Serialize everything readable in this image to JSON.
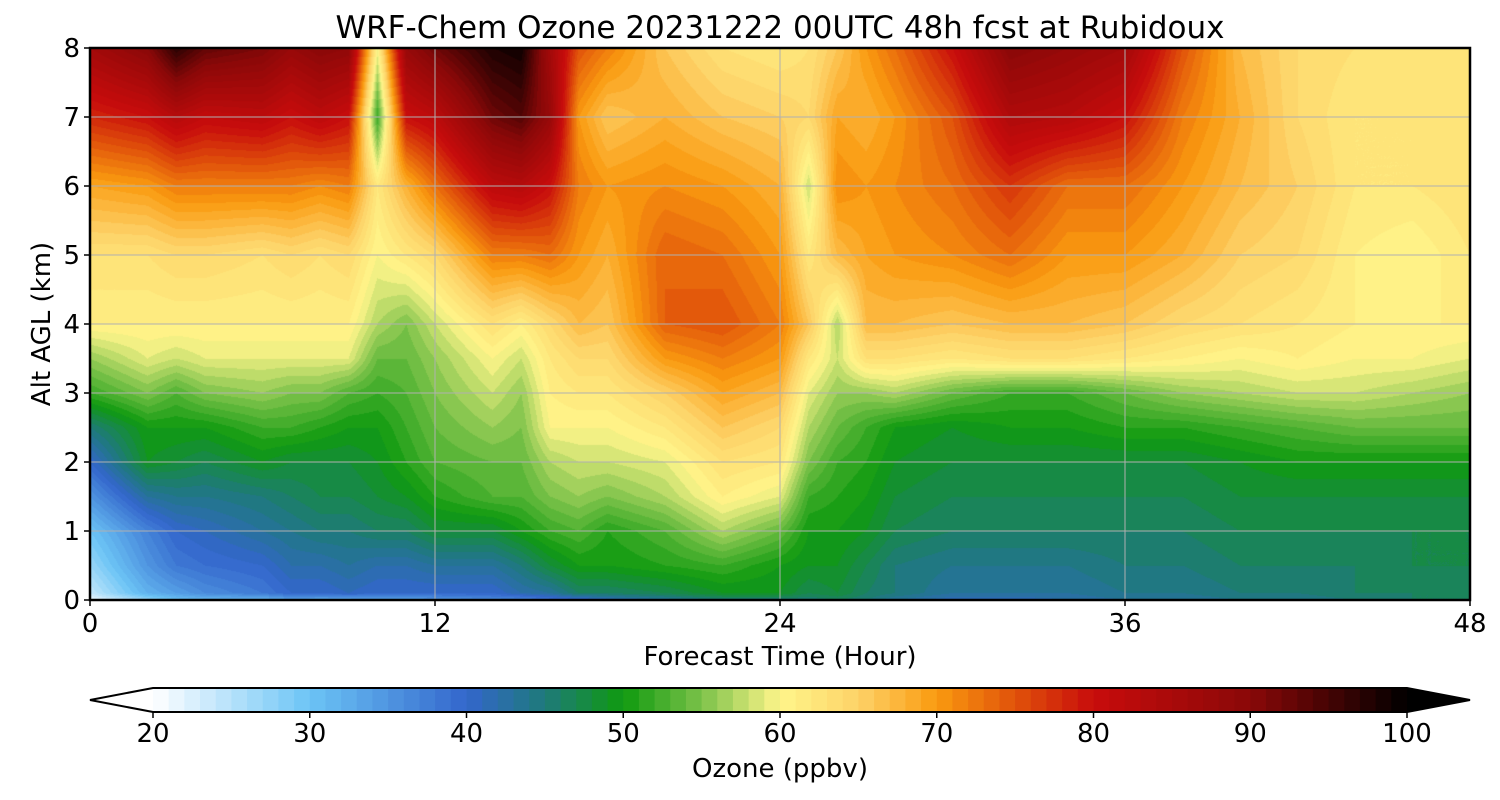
{
  "chart_data": {
    "type": "heatmap",
    "title": "WRF-Chem Ozone  20231222 00UTC 48h fcst at Rubidoux",
    "xlabel": "Forecast Time (Hour)",
    "ylabel": "Alt AGL (km)",
    "xlim": [
      0,
      48
    ],
    "ylim": [
      0,
      8
    ],
    "x_ticks": [
      0,
      12,
      24,
      36,
      48
    ],
    "y_ticks": [
      0,
      1,
      2,
      3,
      4,
      5,
      6,
      7,
      8
    ],
    "x_tick_labels": [
      "0",
      "12",
      "24",
      "36",
      "48"
    ],
    "y_tick_labels": [
      "0",
      "1",
      "2",
      "3",
      "4",
      "5",
      "6",
      "7",
      "8"
    ],
    "grid": true,
    "colorbar": {
      "label": "Ozone  (ppbv)",
      "orientation": "horizontal",
      "range": [
        20,
        100
      ],
      "extend": "both",
      "ticks": [
        20,
        30,
        40,
        50,
        60,
        70,
        80,
        90,
        100
      ],
      "tick_labels": [
        "20",
        "30",
        "40",
        "50",
        "60",
        "70",
        "80",
        "90",
        "100"
      ],
      "color_stops": [
        {
          "value": 20,
          "color": "#ffffff"
        },
        {
          "value": 30,
          "color": "#6cc4f5"
        },
        {
          "value": 40,
          "color": "#3366cc"
        },
        {
          "value": 45,
          "color": "#1e7a7a"
        },
        {
          "value": 50,
          "color": "#0f9a0f"
        },
        {
          "value": 55,
          "color": "#7cc24a"
        },
        {
          "value": 60,
          "color": "#fff58a"
        },
        {
          "value": 65,
          "color": "#fdd268"
        },
        {
          "value": 70,
          "color": "#fa9a0f"
        },
        {
          "value": 75,
          "color": "#e0520a"
        },
        {
          "value": 80,
          "color": "#c80c0c"
        },
        {
          "value": 90,
          "color": "#8a0808"
        },
        {
          "value": 100,
          "color": "#000000"
        }
      ]
    },
    "x_hours": [
      0,
      2,
      3,
      4,
      6,
      7,
      8,
      9,
      10,
      11,
      12,
      14,
      15,
      16,
      17,
      18,
      20,
      22,
      24,
      25,
      26,
      27,
      28,
      30,
      32,
      34,
      36,
      38,
      40,
      42,
      44,
      46,
      48
    ],
    "y_km": [
      0,
      0.1,
      0.5,
      1,
      1.5,
      2,
      2.5,
      3,
      3.5,
      4,
      5,
      6,
      7,
      8
    ],
    "ozone_ppbv": [
      [
        21,
        24,
        27,
        30,
        35,
        40,
        45,
        52,
        56,
        61,
        63,
        69,
        78,
        86
      ],
      [
        27,
        32,
        35,
        37,
        43,
        49,
        50,
        55,
        59,
        61,
        63,
        70,
        80,
        90
      ],
      [
        30,
        34,
        38,
        40,
        44,
        48,
        50,
        53,
        58,
        61,
        64,
        72,
        83,
        97
      ],
      [
        31,
        36,
        39,
        41,
        44,
        47,
        50,
        55,
        59,
        61,
        64,
        72,
        81,
        93
      ],
      [
        31,
        38,
        40,
        43,
        45,
        49,
        52,
        56,
        59,
        61,
        63,
        72,
        82,
        91
      ],
      [
        33,
        40,
        42,
        44,
        46,
        48,
        52,
        55,
        59,
        61,
        64,
        72,
        80,
        88
      ],
      [
        32,
        40,
        42,
        45,
        47,
        48,
        51,
        55,
        59,
        61,
        63,
        71,
        82,
        90
      ],
      [
        32,
        41,
        43,
        45,
        47,
        48,
        50,
        53,
        59,
        61,
        64,
        72,
        80,
        89
      ],
      [
        33,
        40,
        42,
        46,
        48,
        49,
        50,
        52,
        54,
        57,
        60,
        62,
        52,
        60
      ],
      [
        33,
        40,
        42,
        46,
        49,
        51,
        52,
        53,
        54,
        55,
        62,
        68,
        80,
        88
      ],
      [
        34,
        40,
        43,
        48,
        51,
        53,
        54,
        55,
        56,
        58,
        64,
        73,
        82,
        92
      ],
      [
        36,
        40,
        43,
        48,
        53,
        54,
        56,
        58,
        60,
        63,
        72,
        82,
        92,
        98
      ],
      [
        36,
        42,
        45,
        50,
        53,
        54,
        55,
        56,
        58,
        61,
        72,
        83,
        94,
        99
      ],
      [
        38,
        43,
        48,
        52,
        55,
        57,
        60,
        61,
        62,
        64,
        73,
        80,
        88,
        86
      ],
      [
        39,
        46,
        50,
        53,
        56,
        58,
        60,
        62,
        64,
        67,
        70,
        72,
        70,
        75
      ],
      [
        41,
        46,
        50,
        51,
        55,
        58,
        60,
        62,
        64,
        66,
        68,
        70,
        66,
        72
      ],
      [
        43,
        47,
        51,
        53,
        57,
        59,
        62,
        65,
        70,
        74,
        74,
        71,
        68,
        66
      ],
      [
        45,
        49,
        52,
        57,
        61,
        63,
        66,
        69,
        72,
        75,
        73,
        70,
        66,
        63
      ],
      [
        45,
        49,
        50,
        54,
        59,
        62,
        64,
        67,
        70,
        72,
        70,
        68,
        65,
        62
      ],
      [
        45,
        47,
        49,
        50,
        52,
        55,
        57,
        59,
        62,
        66,
        62,
        58,
        64,
        63
      ],
      [
        46,
        48,
        49,
        50,
        51,
        52,
        54,
        56,
        58,
        57,
        67,
        71,
        69,
        66
      ],
      [
        45,
        46,
        47,
        49,
        50,
        51,
        52,
        56,
        63,
        67,
        69,
        70,
        68,
        70
      ],
      [
        43,
        45,
        45,
        47,
        48,
        49,
        50,
        57,
        63,
        67,
        70,
        71,
        70,
        73
      ],
      [
        41,
        43,
        44,
        46,
        47,
        48,
        49,
        54,
        62,
        66,
        71,
        73,
        75,
        80
      ],
      [
        41,
        43,
        44,
        46,
        47,
        48,
        50,
        52,
        63,
        67,
        73,
        77,
        84,
        90
      ],
      [
        42,
        43,
        44,
        46,
        47,
        48,
        50,
        52,
        63,
        67,
        70,
        73,
        83,
        88
      ],
      [
        43,
        44,
        45,
        46,
        47,
        48,
        51,
        54,
        62,
        66,
        70,
        73,
        80,
        86
      ],
      [
        43,
        44,
        45,
        46,
        47,
        48,
        51,
        56,
        61,
        64,
        68,
        70,
        72,
        75
      ],
      [
        44,
        45,
        46,
        47,
        48,
        49,
        52,
        57,
        60,
        63,
        65,
        67,
        68,
        67
      ],
      [
        44,
        45,
        46,
        47,
        48,
        50,
        53,
        58,
        61,
        62,
        64,
        65,
        64,
        64
      ],
      [
        45,
        46,
        46,
        47,
        48,
        50,
        54,
        58,
        60,
        61,
        61,
        62,
        62,
        63
      ],
      [
        46,
        46,
        47,
        47,
        48,
        50,
        54,
        57,
        60,
        61,
        60,
        62,
        62,
        63
      ],
      [
        46,
        46,
        47,
        47,
        48,
        50,
        54,
        56,
        59,
        61,
        62,
        63,
        62,
        62
      ]
    ]
  }
}
